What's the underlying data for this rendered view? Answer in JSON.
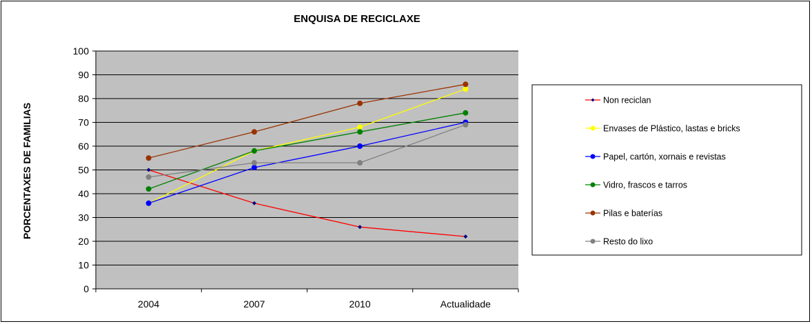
{
  "chart_data": {
    "type": "line",
    "title": "ENQUISA DE RECICLAXE",
    "ylabel": "PORCENTAXES DE FAMILIAS",
    "xlabel": "",
    "categories": [
      "2004",
      "2007",
      "2010",
      "Actualidade"
    ],
    "ylim": [
      0,
      100
    ],
    "yticks": [
      0,
      10,
      20,
      30,
      40,
      50,
      60,
      70,
      80,
      90,
      100
    ],
    "grid": true,
    "legend_position": "right",
    "plot_background": "#c0c0c0",
    "series": [
      {
        "name": "Non reciclan",
        "values": [
          50,
          36,
          26,
          22
        ],
        "color": "#ff0000",
        "marker": "diamond",
        "marker_color": "#000080"
      },
      {
        "name": "Envases de Plástico, lastas e bricks",
        "values": [
          36,
          58,
          68,
          84
        ],
        "color": "#ffff00",
        "marker": "circle",
        "marker_color": "#ffff00"
      },
      {
        "name": "Papel, cartón, xornais e revistas",
        "values": [
          36,
          51,
          60,
          70
        ],
        "color": "#0000ff",
        "marker": "circle",
        "marker_color": "#0000ff"
      },
      {
        "name": "Vidro, frascos  e tarros",
        "values": [
          42,
          58,
          66,
          74
        ],
        "color": "#008000",
        "marker": "circle",
        "marker_color": "#008000"
      },
      {
        "name": "Pilas e baterías",
        "values": [
          55,
          66,
          78,
          86
        ],
        "color": "#993300",
        "marker": "circle",
        "marker_color": "#993300"
      },
      {
        "name": "Resto do lixo",
        "values": [
          47,
          53,
          53,
          69
        ],
        "color": "#808080",
        "marker": "circle",
        "marker_color": "#808080"
      }
    ]
  }
}
